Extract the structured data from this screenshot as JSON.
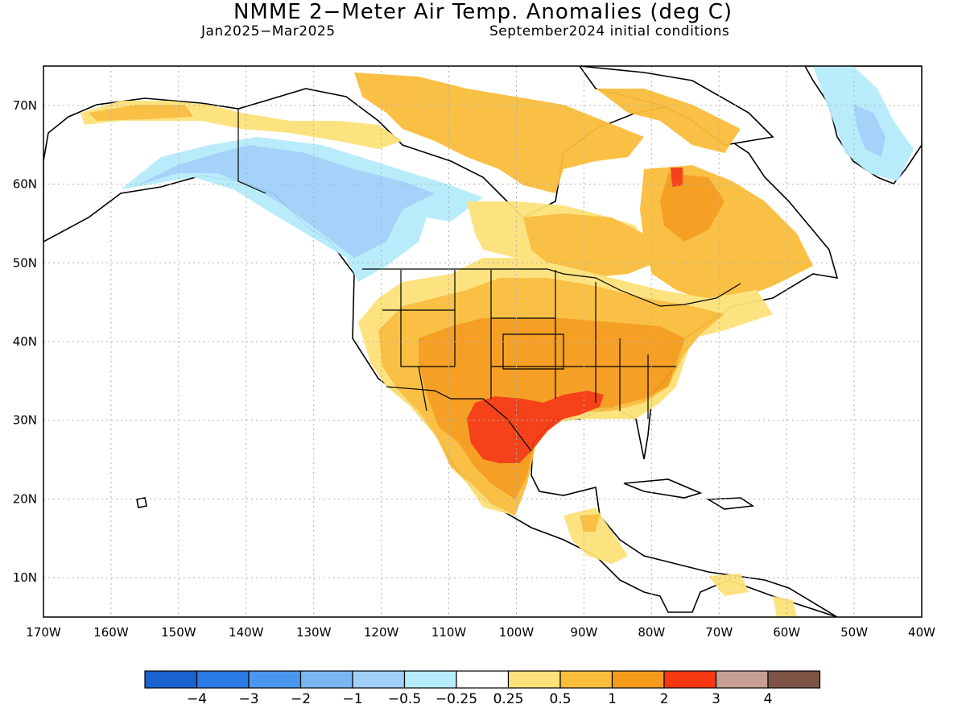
{
  "title": "NMME 2−Meter Air Temp. Anomalies (deg C)",
  "subtitle_left": "Jan2025−Mar2025",
  "subtitle_right": "September2024 initial conditions",
  "map": {
    "lon_min": -170,
    "lon_max": -40,
    "lat_min": 5,
    "lat_max": 75,
    "lon_ticks": [
      {
        "value": -170,
        "label": "170W"
      },
      {
        "value": -160,
        "label": "160W"
      },
      {
        "value": -150,
        "label": "150W"
      },
      {
        "value": -140,
        "label": "140W"
      },
      {
        "value": -130,
        "label": "130W"
      },
      {
        "value": -120,
        "label": "120W"
      },
      {
        "value": -110,
        "label": "110W"
      },
      {
        "value": -100,
        "label": "100W"
      },
      {
        "value": -90,
        "label": "90W"
      },
      {
        "value": -80,
        "label": "80W"
      },
      {
        "value": -70,
        "label": "70W"
      },
      {
        "value": -60,
        "label": "60W"
      },
      {
        "value": -50,
        "label": "50W"
      },
      {
        "value": -40,
        "label": "40W"
      }
    ],
    "lat_ticks": [
      {
        "value": 10,
        "label": "10N"
      },
      {
        "value": 20,
        "label": "20N"
      },
      {
        "value": 30,
        "label": "30N"
      },
      {
        "value": 40,
        "label": "40N"
      },
      {
        "value": 50,
        "label": "50N"
      },
      {
        "value": 60,
        "label": "60N"
      },
      {
        "value": 70,
        "label": "70N"
      }
    ],
    "grid": "dotted"
  },
  "colorbar": {
    "colors": [
      "#1a64d0",
      "#2b7be6",
      "#4a97ef",
      "#7bb6f4",
      "#a0d0f8",
      "#b6ecfb",
      "#ffffff",
      "#fde17a",
      "#f9bd3c",
      "#f59a1a",
      "#f5380f",
      "#c79f92",
      "#7d5346"
    ],
    "labels": [
      "−4",
      "−3",
      "−2",
      "−1",
      "−0.5",
      "−0.25",
      "0.25",
      "0.5",
      "1",
      "2",
      "3",
      "4"
    ]
  }
}
